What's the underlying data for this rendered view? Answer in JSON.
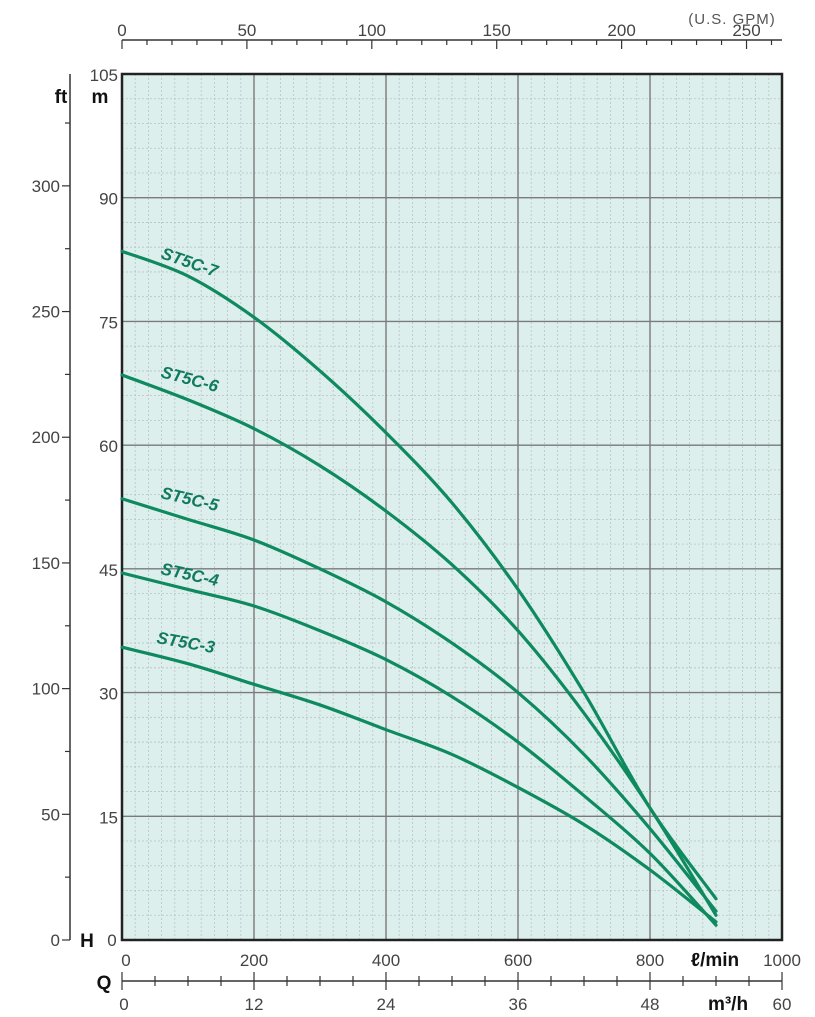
{
  "chart_data": {
    "type": "line",
    "title": "",
    "xlabel": "l/min",
    "ylabel": "m",
    "xlim": [
      0,
      1000
    ],
    "ylim": [
      0,
      105
    ],
    "grid": true,
    "colors": {
      "background": "#dcefed",
      "curve": "#0f8a5f",
      "grid_major": "#7a7a7a",
      "grid_minor": "#b8c4c4",
      "label": "#0f7a5c"
    },
    "axes": {
      "top": {
        "unit": "(U.S. GPM)",
        "min": 0,
        "max": 264.2,
        "ticks": [
          "0",
          "50",
          "100",
          "150",
          "200",
          "250"
        ],
        "tick_values": [
          0,
          50,
          100,
          150,
          200,
          250
        ]
      },
      "left_ft": {
        "unit": "ft",
        "min": 0,
        "max": 344.5,
        "ticks": [
          "0",
          "50",
          "100",
          "150",
          "200",
          "250",
          "300"
        ],
        "tick_values": [
          0,
          50,
          100,
          150,
          200,
          250,
          300
        ]
      },
      "left_m": {
        "unit": "m",
        "letter": "H",
        "ticks": [
          "0",
          "15",
          "30",
          "45",
          "60",
          "75",
          "90",
          "105"
        ],
        "tick_values": [
          0,
          15,
          30,
          45,
          60,
          75,
          90,
          105
        ]
      },
      "bottom_lmin": {
        "unit": "ℓ/min",
        "ticks": [
          "0",
          "200",
          "400",
          "600",
          "800",
          "1000"
        ],
        "tick_values": [
          0,
          200,
          400,
          600,
          800,
          1000
        ]
      },
      "bottom_m3h": {
        "unit": "m³/h",
        "letter": "Q",
        "min": 0,
        "max": 60,
        "ticks": [
          "0",
          "12",
          "24",
          "36",
          "48",
          "60"
        ],
        "tick_values": [
          0,
          12,
          24,
          36,
          48,
          60
        ]
      }
    },
    "series": [
      {
        "name": "ST5C-7",
        "x": [
          0,
          100,
          200,
          300,
          400,
          500,
          600,
          700,
          800,
          900
        ],
        "y": [
          83.5,
          80.5,
          75.5,
          69,
          61.5,
          53,
          42.5,
          30,
          16,
          5
        ]
      },
      {
        "name": "ST5C-6",
        "x": [
          0,
          100,
          200,
          300,
          400,
          500,
          600,
          700,
          800,
          900
        ],
        "y": [
          68.5,
          65.5,
          62,
          57.5,
          52,
          45.5,
          37.5,
          27.5,
          16,
          3
        ]
      },
      {
        "name": "ST5C-5",
        "x": [
          0,
          100,
          200,
          300,
          400,
          500,
          600,
          700,
          800,
          900
        ],
        "y": [
          53.5,
          51,
          48.5,
          45,
          41,
          36,
          30,
          22.5,
          13.5,
          3.5
        ]
      },
      {
        "name": "ST5C-4",
        "x": [
          0,
          100,
          200,
          300,
          400,
          500,
          600,
          700,
          800,
          900
        ],
        "y": [
          44.5,
          42.5,
          40.5,
          37.5,
          34,
          29.5,
          24,
          17.5,
          10.5,
          1.8
        ]
      },
      {
        "name": "ST5C-3",
        "x": [
          0,
          100,
          200,
          300,
          400,
          500,
          600,
          700,
          800,
          900
        ],
        "y": [
          35.5,
          33.5,
          31,
          28.5,
          25.5,
          22.5,
          18.5,
          14,
          8.5,
          2.2
        ]
      }
    ]
  }
}
